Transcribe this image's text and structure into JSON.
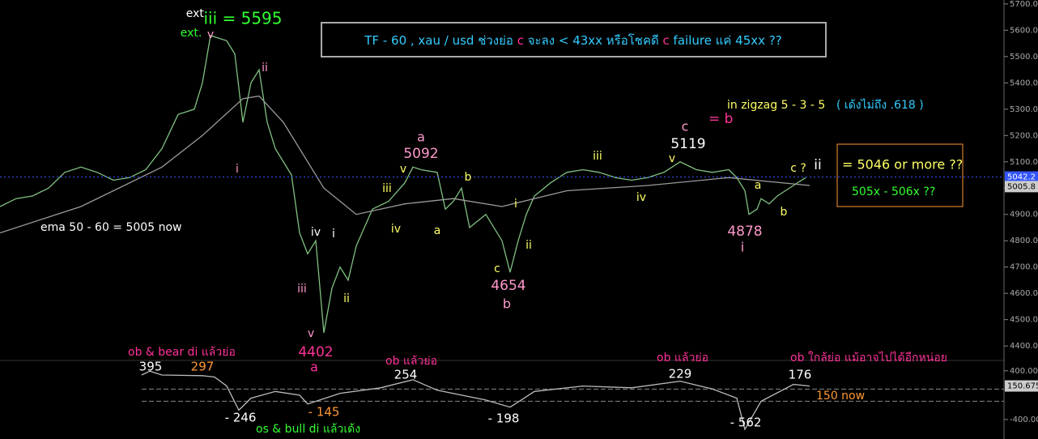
{
  "chart_data": [
    {
      "type": "line",
      "title_parts": [
        {
          "text": "TF - 60 , xau / usd ช่วงย่อ ",
          "color": "#33ccff"
        },
        {
          "text": "c",
          "color": "#ff3399"
        },
        {
          "text": " จะลง < 43xx หรือโชคดี ",
          "color": "#33ccff"
        },
        {
          "text": "c",
          "color": "#ff3399"
        },
        {
          "text": " failure แค่ 45xx ??",
          "color": "#33ccff"
        }
      ],
      "xlim": [
        0,
        1240
      ],
      "ylim": [
        4345,
        5715
      ],
      "yticks": [
        {
          "value": 4400,
          "label": "4400.0"
        },
        {
          "value": 4500,
          "label": "4500.0"
        },
        {
          "value": 4600,
          "label": "4600.0"
        },
        {
          "value": 4700,
          "label": "4700.0"
        },
        {
          "value": 4800,
          "label": "4800.0"
        },
        {
          "value": 4900,
          "label": "4900.0"
        },
        {
          "value": 5000,
          "label": "5000.0"
        },
        {
          "value": 5100,
          "label": "5100.0"
        },
        {
          "value": 5200,
          "label": "5200.0"
        },
        {
          "value": 5300,
          "label": "5300.0"
        },
        {
          "value": 5400,
          "label": "5400.0"
        },
        {
          "value": 5500,
          "label": "5500.0"
        },
        {
          "value": 5600,
          "label": "5600.0"
        },
        {
          "value": 5700,
          "label": "5700.0"
        }
      ],
      "series": [
        {
          "color": "#80c080",
          "x": [
            0,
            20,
            40,
            60,
            80,
            100,
            120,
            140,
            160,
            180,
            200,
            220,
            240,
            250,
            260,
            270,
            280,
            290,
            300,
            310,
            320,
            330,
            340,
            360,
            370,
            380,
            390,
            400,
            410,
            420,
            430,
            440,
            450,
            460,
            480,
            500,
            510,
            520,
            540,
            550,
            560,
            570,
            580,
            600,
            620,
            630,
            640,
            650,
            660,
            680,
            700,
            720,
            740,
            760,
            780,
            800,
            820,
            840,
            860,
            880,
            900,
            910,
            920,
            925,
            935,
            940,
            950,
            960,
            980,
            995
          ],
          "values": [
            4930,
            4960,
            4970,
            5000,
            5060,
            5080,
            5060,
            5030,
            5040,
            5070,
            5150,
            5280,
            5300,
            5400,
            5580,
            5570,
            5560,
            5510,
            5250,
            5400,
            5450,
            5250,
            5150,
            5050,
            4830,
            4750,
            4800,
            4450,
            4620,
            4700,
            4650,
            4780,
            4850,
            4920,
            4950,
            5020,
            5080,
            5070,
            5060,
            4920,
            4950,
            5000,
            4850,
            4900,
            4800,
            4680,
            4800,
            4900,
            4970,
            5020,
            5060,
            5070,
            5060,
            5040,
            5030,
            5040,
            5060,
            5100,
            5070,
            5060,
            5070,
            5040,
            4990,
            4900,
            4920,
            4960,
            4940,
            4970,
            5010,
            5040
          ]
        },
        {
          "color": "#9a9a9a",
          "x": [
            0,
            100,
            200,
            250,
            300,
            320,
            350,
            400,
            440,
            500,
            560,
            620,
            700,
            800,
            900,
            1000
          ],
          "values": [
            4830,
            4930,
            5080,
            5200,
            5340,
            5350,
            5250,
            5000,
            4900,
            4940,
            4960,
            4930,
            4990,
            5010,
            5040,
            5010
          ]
        }
      ],
      "price_labels": [
        {
          "value": 5042.2,
          "label": "5042.2",
          "color": "#3355ff"
        },
        {
          "value": 5005.8,
          "label": "5005.8",
          "color": "#cccccc"
        }
      ],
      "annotations": [
        {
          "text": "ext.",
          "color": "#ffffff"
        },
        {
          "text": "iii = 5595",
          "color": "#33ff33"
        },
        {
          "text": "ext.",
          "color": "#33ff33"
        },
        {
          "text": "v",
          "color": "#ff99cc"
        },
        {
          "text": "ii",
          "color": "#ff99cc"
        },
        {
          "text": "i",
          "color": "#ff99cc"
        },
        {
          "text": "iv",
          "color": "#ffffff"
        },
        {
          "text": "i",
          "color": "#ffffff"
        },
        {
          "text": "iii",
          "color": "#ff99cc"
        },
        {
          "text": "ii",
          "color": "#ffff66"
        },
        {
          "text": "v",
          "color": "#ff99cc"
        },
        {
          "text": "4402",
          "color": "#ff3399"
        },
        {
          "text": "a",
          "color": "#ff3399"
        },
        {
          "text": "iii",
          "color": "#ffff66"
        },
        {
          "text": "iv",
          "color": "#ffff66"
        },
        {
          "text": "v",
          "color": "#ffff66"
        },
        {
          "text": "a",
          "color": "#ff99cc"
        },
        {
          "text": "5092",
          "color": "#ff99cc"
        },
        {
          "text": "b",
          "color": "#ffff66"
        },
        {
          "text": "a",
          "color": "#ffff66"
        },
        {
          "text": "i",
          "color": "#ffff66"
        },
        {
          "text": "ii",
          "color": "#ffff66"
        },
        {
          "text": "c",
          "color": "#ffff66"
        },
        {
          "text": "4654",
          "color": "#ff99cc"
        },
        {
          "text": "b",
          "color": "#ff99cc"
        },
        {
          "text": "iii",
          "color": "#ffff66"
        },
        {
          "text": "iv",
          "color": "#ffff66"
        },
        {
          "text": "v",
          "color": "#ffff66"
        },
        {
          "text": "c",
          "color": "#ff99cc"
        },
        {
          "text": "5119",
          "color": "#ffffff"
        },
        {
          "text": "= b",
          "color": "#ff3399"
        },
        {
          "text": "in zigzag 5 - 3 - 5",
          "color": "#ffff66"
        },
        {
          "text": "( เด้งไม่ถึง .618 )",
          "color": "#33ccff"
        },
        {
          "text": "c ?",
          "color": "#ffff66"
        },
        {
          "text": "ii",
          "color": "#ffffff"
        },
        {
          "text": "= 5046 or more ??",
          "color": "#ffff66"
        },
        {
          "text": "505x - 506x ??",
          "color": "#33ff33"
        },
        {
          "text": "a",
          "color": "#ffff66"
        },
        {
          "text": "b",
          "color": "#ffff66"
        },
        {
          "text": "4878",
          "color": "#ff99cc"
        },
        {
          "text": "i",
          "color": "#ff99cc"
        },
        {
          "text": "ema 50 - 60 = 5005 now",
          "color": "#ffffff"
        }
      ]
    },
    {
      "type": "line",
      "xlim": [
        0,
        1240
      ],
      "ylim": [
        -720,
        570
      ],
      "yticks": [
        {
          "value": 400,
          "label": "400.00"
        },
        {
          "value": -400,
          "label": "-400.00"
        }
      ],
      "levels": [
        100,
        -100
      ],
      "series": [
        {
          "color": "#bbbbbb",
          "x": [
            175,
            185,
            200,
            250,
            265,
            280,
            295,
            310,
            340,
            370,
            380,
            420,
            470,
            510,
            540,
            600,
            630,
            660,
            720,
            780,
            840,
            880,
            910,
            920,
            940,
            980,
            1000
          ],
          "values": [
            330,
            395,
            330,
            320,
            297,
            150,
            -246,
            -50,
            60,
            0,
            -145,
            30,
            120,
            254,
            80,
            -80,
            -198,
            60,
            150,
            120,
            229,
            100,
            -50,
            -562,
            -100,
            176,
            150
          ]
        }
      ],
      "price_labels": [
        {
          "value": 150.675,
          "label": "150.675",
          "color": "#cccccc"
        }
      ],
      "annotations": [
        {
          "text": "ob & bear di แล้วย่อ",
          "color": "#ff3399"
        },
        {
          "text": "395",
          "color": "#ffffff"
        },
        {
          "text": "297",
          "color": "#ff9933"
        },
        {
          "text": "- 246",
          "color": "#ffffff"
        },
        {
          "text": "- 145",
          "color": "#ff9933"
        },
        {
          "text": "os & bull di แล้วเด้ง",
          "color": "#33ff33"
        },
        {
          "text": "ob แล้วย่อ",
          "color": "#ff3399"
        },
        {
          "text": "254",
          "color": "#ffffff"
        },
        {
          "text": "- 198",
          "color": "#ffffff"
        },
        {
          "text": "ob แล้วย่อ",
          "color": "#ff3399"
        },
        {
          "text": "229",
          "color": "#ffffff"
        },
        {
          "text": "- 562",
          "color": "#ffffff"
        },
        {
          "text": "ob ใกล้ย่อ แม้อาจไปได้อีกหน่อย",
          "color": "#ff3399"
        },
        {
          "text": "176",
          "color": "#ffffff"
        },
        {
          "text": "150 now",
          "color": "#ff9933"
        }
      ]
    }
  ]
}
